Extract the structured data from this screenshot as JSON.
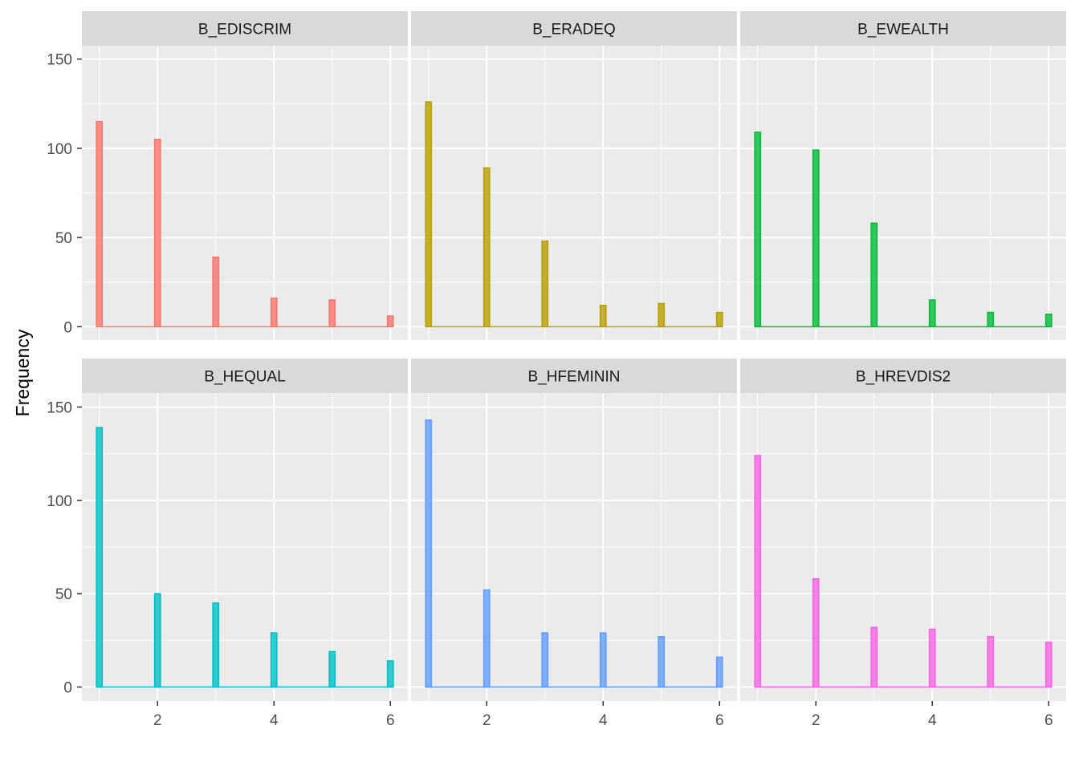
{
  "chart_data": {
    "type": "bar",
    "title": "",
    "xlabel": "",
    "ylabel": "Frequency",
    "xlim": [
      0.7,
      6.3
    ],
    "ylim": [
      -7.5,
      157.5
    ],
    "xticks": [
      2,
      4,
      6
    ],
    "yticks": [
      0,
      50,
      100,
      150
    ],
    "grid": true,
    "legend": "none",
    "categories": [
      1,
      2,
      3,
      4,
      5,
      6
    ],
    "facets": [
      {
        "name": "B_EDISCRIM",
        "color": "#F8766D",
        "values": [
          115,
          105,
          39,
          16,
          15,
          6
        ]
      },
      {
        "name": "B_ERADEQ",
        "color": "#B79F00",
        "values": [
          126,
          89,
          48,
          12,
          13,
          8
        ]
      },
      {
        "name": "B_EWEALTH",
        "color": "#00BA38",
        "values": [
          109,
          99,
          58,
          15,
          8,
          7
        ]
      },
      {
        "name": "B_HEQUAL",
        "color": "#00BFC4",
        "values": [
          139,
          50,
          45,
          29,
          19,
          14
        ]
      },
      {
        "name": "B_HFEMININ",
        "color": "#619CFF",
        "values": [
          143,
          52,
          29,
          29,
          27,
          16
        ]
      },
      {
        "name": "B_HREVDIS2",
        "color": "#F564E3",
        "values": [
          124,
          58,
          32,
          31,
          27,
          24
        ]
      }
    ]
  }
}
